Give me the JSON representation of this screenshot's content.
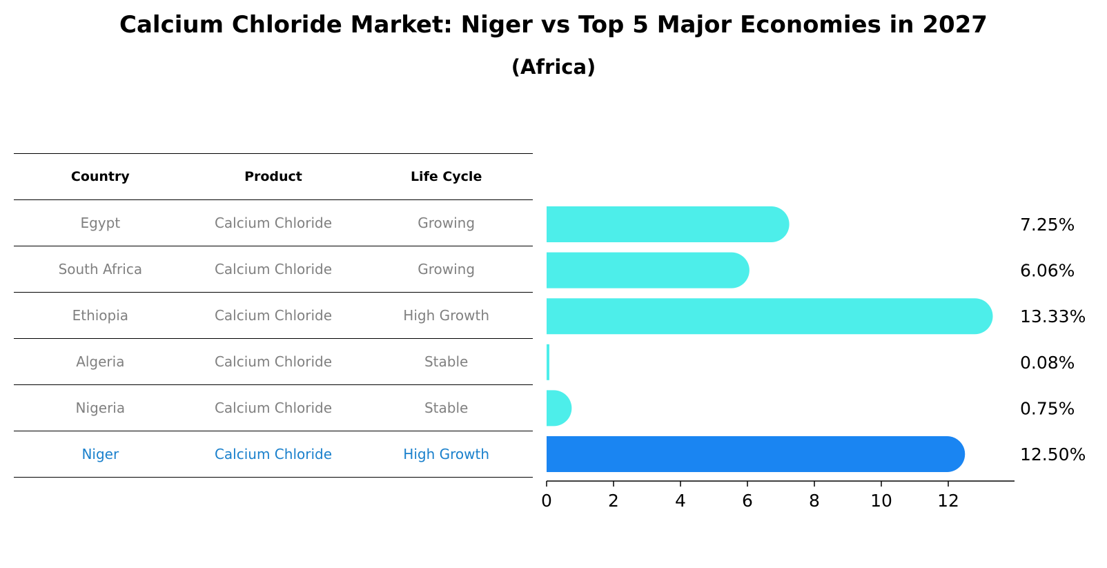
{
  "title": "Calcium Chloride Market: Niger vs Top 5 Major Economies in 2027",
  "subtitle": "(Africa)",
  "table": {
    "headers": [
      "Country",
      "Product",
      "Life Cycle"
    ],
    "rows": [
      {
        "country": "Egypt",
        "product": "Calcium Chloride",
        "life_cycle": "Growing",
        "highlight": false
      },
      {
        "country": "South Africa",
        "product": "Calcium Chloride",
        "life_cycle": "Growing",
        "highlight": false
      },
      {
        "country": "Ethiopia",
        "product": "Calcium Chloride",
        "life_cycle": "High Growth",
        "highlight": false
      },
      {
        "country": "Algeria",
        "product": "Calcium Chloride",
        "life_cycle": "Stable",
        "highlight": false
      },
      {
        "country": "Nigeria",
        "product": "Calcium Chloride",
        "life_cycle": "Stable",
        "highlight": false
      },
      {
        "country": "Niger",
        "product": "Calcium Chloride",
        "life_cycle": "High Growth",
        "highlight": true
      }
    ]
  },
  "chart_data": {
    "type": "bar",
    "orientation": "horizontal",
    "categories": [
      "Egypt",
      "South Africa",
      "Ethiopia",
      "Algeria",
      "Nigeria",
      "Niger"
    ],
    "values": [
      7.25,
      6.06,
      13.33,
      0.08,
      0.75,
      12.5
    ],
    "value_labels": [
      "7.25%",
      "6.06%",
      "13.33%",
      "0.08%",
      "0.75%",
      "12.50%"
    ],
    "highlight_index": 5,
    "colors": {
      "default": "#4deeea",
      "highlight": "#1a85f2"
    },
    "xlim": [
      0,
      14
    ],
    "xticks": [
      0,
      2,
      4,
      6,
      8,
      10,
      12
    ],
    "xlabel": "",
    "ylabel": "",
    "grid": false
  }
}
